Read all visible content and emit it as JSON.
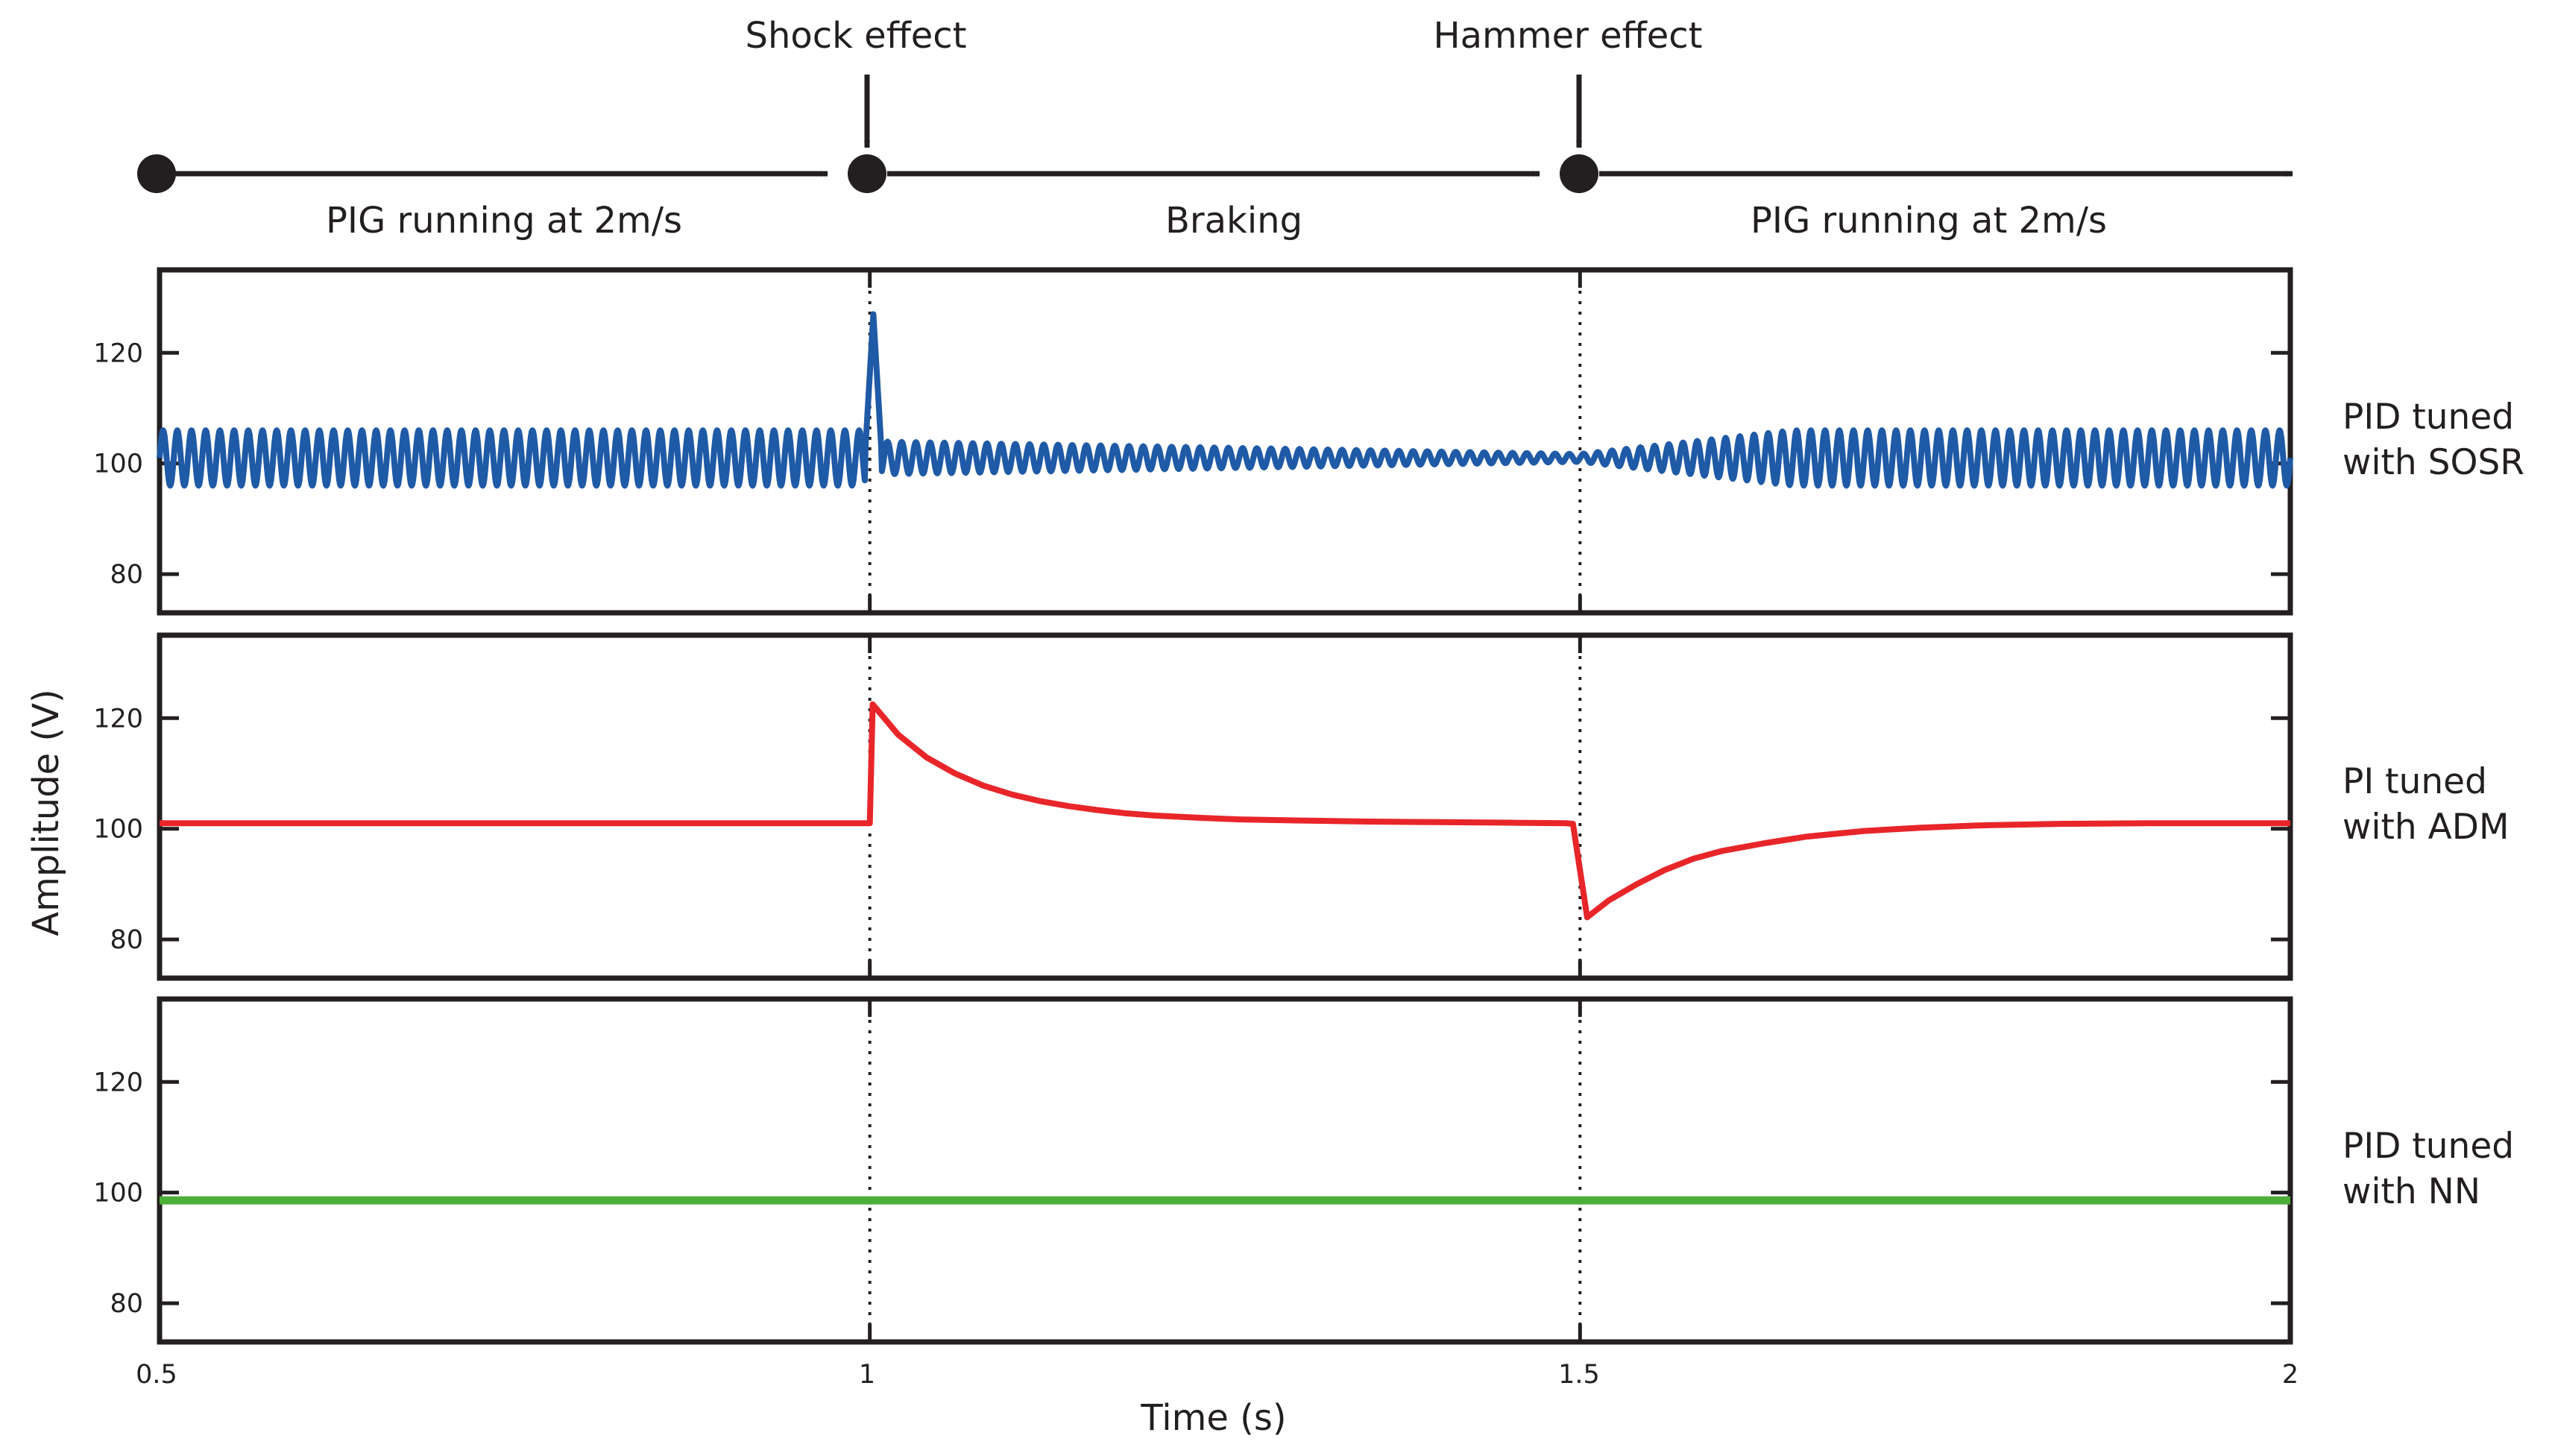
{
  "chart_data": {
    "type": "line",
    "x_label": "Time (s)",
    "y_label": "Amplitude (V)",
    "xlim": [
      0.5,
      2
    ],
    "ylim": [
      73,
      135
    ],
    "x_ticks": [
      "0.5",
      "1",
      "1.5",
      "2"
    ],
    "y_ticks": [
      "80",
      "100",
      "120"
    ],
    "timeline": {
      "phases": [
        {
          "label": "PIG running at 2m/s",
          "from": 0.5,
          "to": 1.0
        },
        {
          "label": "Braking",
          "from": 1.0,
          "to": 1.5
        },
        {
          "label": "PIG running at 2m/s",
          "from": 1.5,
          "to": 2.0
        }
      ],
      "events": [
        {
          "label": "Shock effect",
          "t": 1.0
        },
        {
          "label": "Hammer effect",
          "t": 1.5
        }
      ]
    },
    "panels": [
      {
        "name": "sosr",
        "controller": [
          "PID tuned",
          "with SOSR"
        ],
        "color": "#1f5aa6",
        "baseline": 101,
        "shock_peak": 127,
        "oscillation": {
          "cycles_per_second": 100,
          "amplitude_running": 5,
          "amplitude_braking_start": 3,
          "amplitude_braking_end": 0.7
        }
      },
      {
        "name": "adm",
        "controller": [
          "PI tuned",
          "with ADM"
        ],
        "color": "#e8262a",
        "points": [
          [
            0.5,
            101
          ],
          [
            1.0,
            101
          ],
          [
            1.002,
            122.5
          ],
          [
            1.02,
            117
          ],
          [
            1.04,
            112.9
          ],
          [
            1.06,
            110
          ],
          [
            1.08,
            107.8
          ],
          [
            1.1,
            106.2
          ],
          [
            1.12,
            105
          ],
          [
            1.14,
            104.1
          ],
          [
            1.16,
            103.4
          ],
          [
            1.18,
            102.8
          ],
          [
            1.2,
            102.4
          ],
          [
            1.23,
            102
          ],
          [
            1.26,
            101.7
          ],
          [
            1.3,
            101.5
          ],
          [
            1.35,
            101.3
          ],
          [
            1.4,
            101.2
          ],
          [
            1.45,
            101.1
          ],
          [
            1.49,
            101
          ],
          [
            1.495,
            100.9
          ],
          [
            1.505,
            84
          ],
          [
            1.52,
            87
          ],
          [
            1.54,
            90
          ],
          [
            1.56,
            92.6
          ],
          [
            1.58,
            94.6
          ],
          [
            1.6,
            96
          ],
          [
            1.63,
            97.4
          ],
          [
            1.66,
            98.6
          ],
          [
            1.7,
            99.6
          ],
          [
            1.74,
            100.2
          ],
          [
            1.78,
            100.6
          ],
          [
            1.84,
            100.9
          ],
          [
            1.9,
            101
          ],
          [
            2.0,
            101
          ]
        ]
      },
      {
        "name": "nn",
        "controller": [
          "PID tuned",
          "with NN"
        ],
        "color": "#4daf3a",
        "baseline": 98.6
      }
    ]
  }
}
